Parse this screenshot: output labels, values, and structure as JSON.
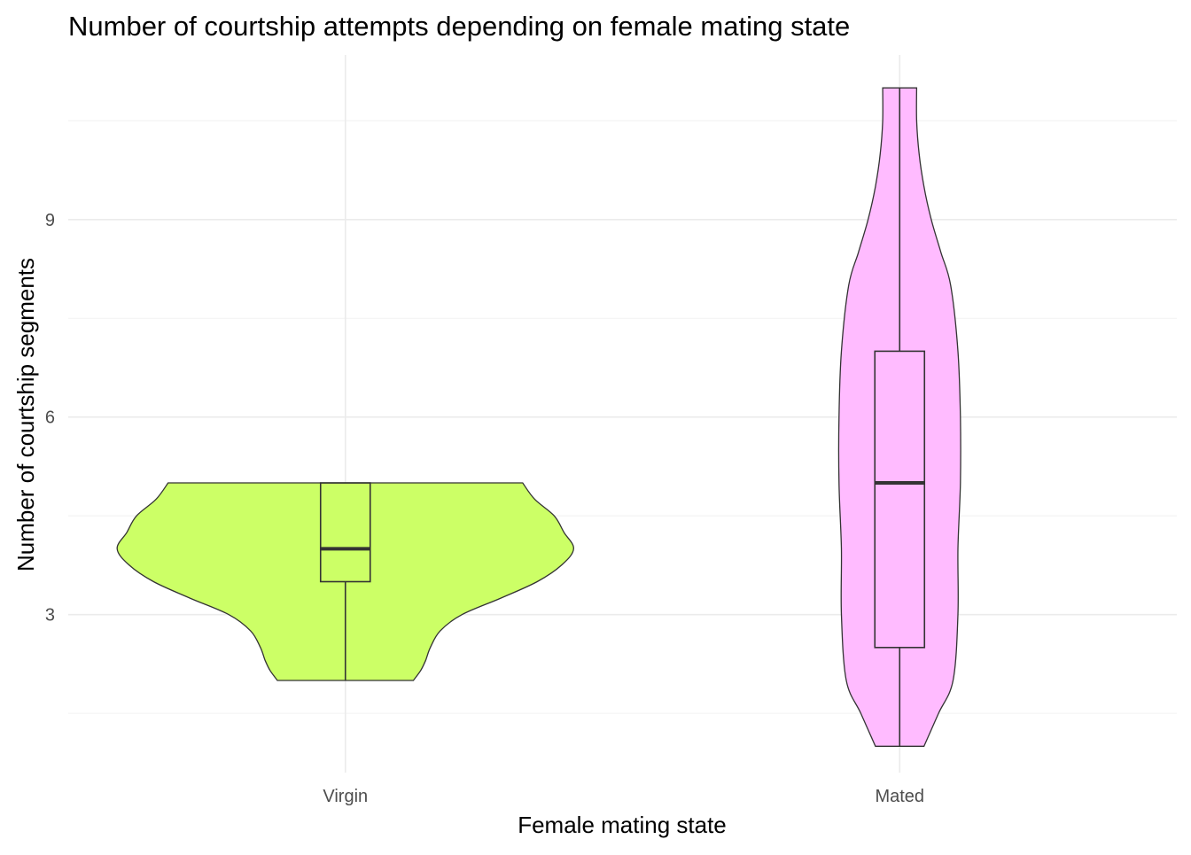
{
  "chart_data": {
    "type": "violin",
    "title": "Number of courtship attempts depending on female mating state",
    "xlabel": "Female mating state",
    "ylabel": "Number of courtship segments",
    "categories": [
      "Virgin",
      "Mated"
    ],
    "ylim": [
      0.6,
      11.5
    ],
    "yticks": [
      3,
      6,
      9
    ],
    "grid": true,
    "legend": "none",
    "series": [
      {
        "category": "Virgin",
        "color": "#ccff66",
        "min": 2,
        "q1": 3.5,
        "median": 4,
        "q3": 5,
        "max": 5,
        "density": [
          [
            2.0,
            0.28
          ],
          [
            2.15,
            0.31
          ],
          [
            2.3,
            0.33
          ],
          [
            2.5,
            0.35
          ],
          [
            2.75,
            0.39
          ],
          [
            3.0,
            0.48
          ],
          [
            3.25,
            0.64
          ],
          [
            3.5,
            0.79
          ],
          [
            3.75,
            0.89
          ],
          [
            4.0,
            0.94
          ],
          [
            4.25,
            0.9
          ],
          [
            4.5,
            0.86
          ],
          [
            4.75,
            0.78
          ],
          [
            5.0,
            0.73
          ]
        ]
      },
      {
        "category": "Mated",
        "color": "#ffbbff",
        "min": 1,
        "q1": 2.5,
        "median": 5,
        "q3": 7,
        "max": 11,
        "density": [
          [
            1.0,
            0.1
          ],
          [
            1.5,
            0.16
          ],
          [
            2.0,
            0.22
          ],
          [
            3.0,
            0.24
          ],
          [
            4.0,
            0.24
          ],
          [
            5.0,
            0.25
          ],
          [
            6.0,
            0.25
          ],
          [
            7.0,
            0.24
          ],
          [
            8.0,
            0.21
          ],
          [
            8.5,
            0.17
          ],
          [
            9.0,
            0.13
          ],
          [
            9.5,
            0.1
          ],
          [
            10.0,
            0.08
          ],
          [
            10.5,
            0.07
          ],
          [
            11.0,
            0.07
          ]
        ]
      }
    ]
  }
}
